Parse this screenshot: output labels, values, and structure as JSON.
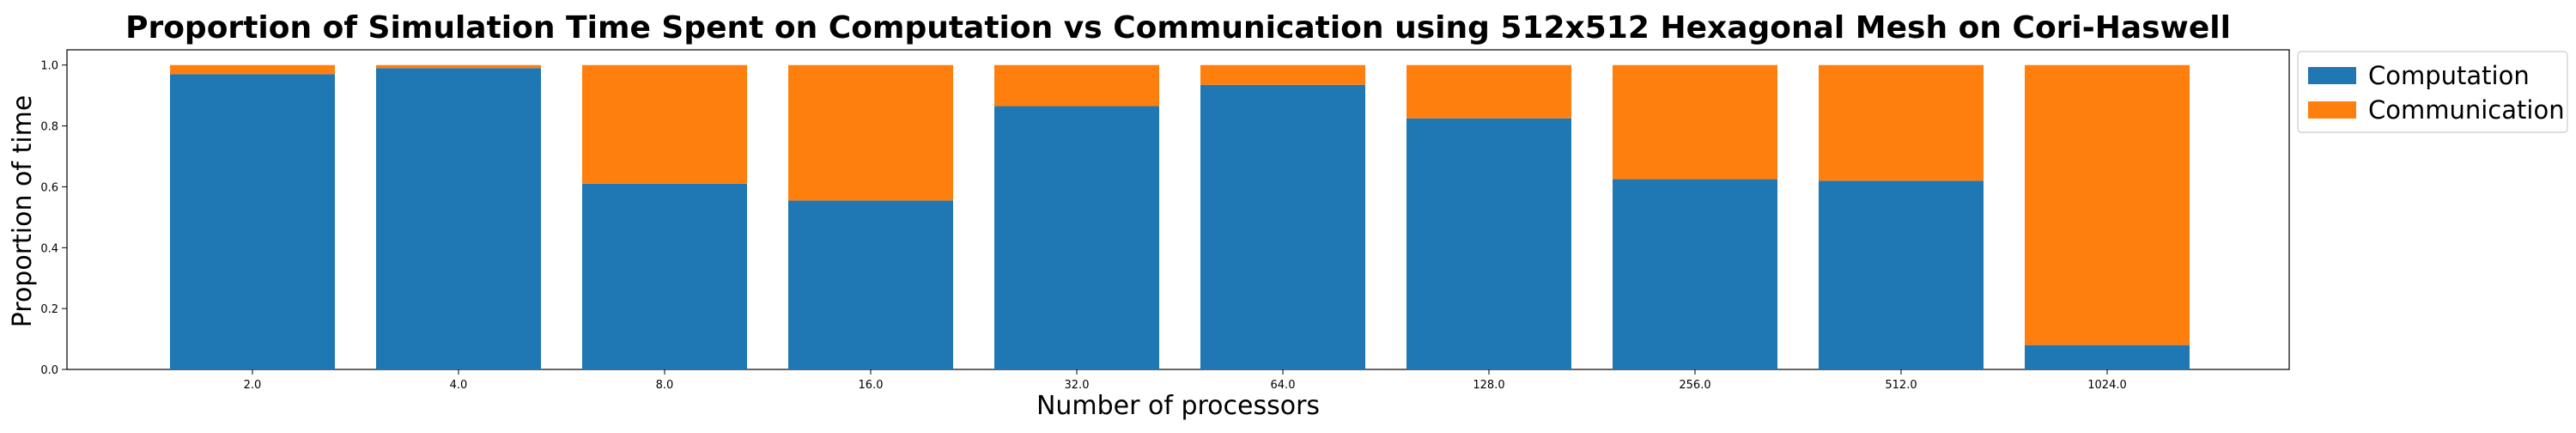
{
  "chart_data": {
    "type": "bar",
    "stacked": true,
    "title": "Proportion of Simulation Time Spent on Computation vs Communication using 512x512 Hexagonal Mesh on Cori-Haswell",
    "xlabel": "Number of processors",
    "ylabel": "Proportion of time",
    "categories": [
      "2.0",
      "4.0",
      "8.0",
      "16.0",
      "32.0",
      "64.0",
      "128.0",
      "256.0",
      "512.0",
      "1024.0"
    ],
    "series": [
      {
        "name": "Computation",
        "color": "#1f77b4",
        "values": [
          0.97,
          0.99,
          0.61,
          0.555,
          0.865,
          0.935,
          0.825,
          0.625,
          0.62,
          0.08
        ]
      },
      {
        "name": "Communication",
        "color": "#ff7f0e",
        "values": [
          0.03,
          0.01,
          0.39,
          0.445,
          0.135,
          0.065,
          0.175,
          0.375,
          0.38,
          0.92
        ]
      }
    ],
    "ylim": [
      0,
      1.05
    ],
    "yticks": [
      "0.0",
      "0.2",
      "0.4",
      "0.6",
      "0.8",
      "1.0"
    ],
    "ytick_values": [
      0,
      0.2,
      0.4,
      0.6,
      0.8,
      1.0
    ],
    "grid": false,
    "legend_position": "outside-top-right"
  }
}
